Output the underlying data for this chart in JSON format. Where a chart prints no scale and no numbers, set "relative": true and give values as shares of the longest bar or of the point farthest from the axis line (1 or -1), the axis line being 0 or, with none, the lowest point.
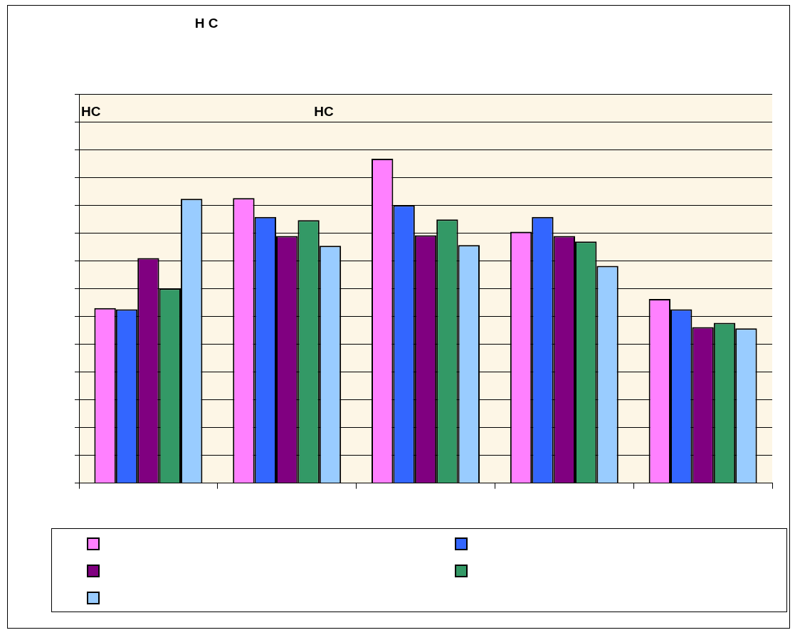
{
  "chart_data": {
    "type": "bar",
    "title": "H C",
    "relative": true,
    "categories": [
      null,
      null,
      null,
      null,
      null
    ],
    "series": [
      {
        "color": "#ff80ff",
        "values": [
          0.54,
          0.879,
          1,
          0.775,
          0.568
        ]
      },
      {
        "color": "#3366ff",
        "values": [
          0.536,
          0.821,
          0.857,
          0.821,
          0.536
        ]
      },
      {
        "color": "#800080",
        "values": [
          0.694,
          0.762,
          0.764,
          0.762,
          0.481
        ]
      },
      {
        "color": "#339966",
        "values": [
          0.6,
          0.811,
          0.813,
          0.745,
          0.494
        ]
      },
      {
        "color": "#99ccff",
        "values": [
          0.877,
          0.732,
          0.734,
          0.67,
          0.477
        ]
      }
    ],
    "annotations": [
      "HC",
      "HC"
    ],
    "grid": "y"
  }
}
